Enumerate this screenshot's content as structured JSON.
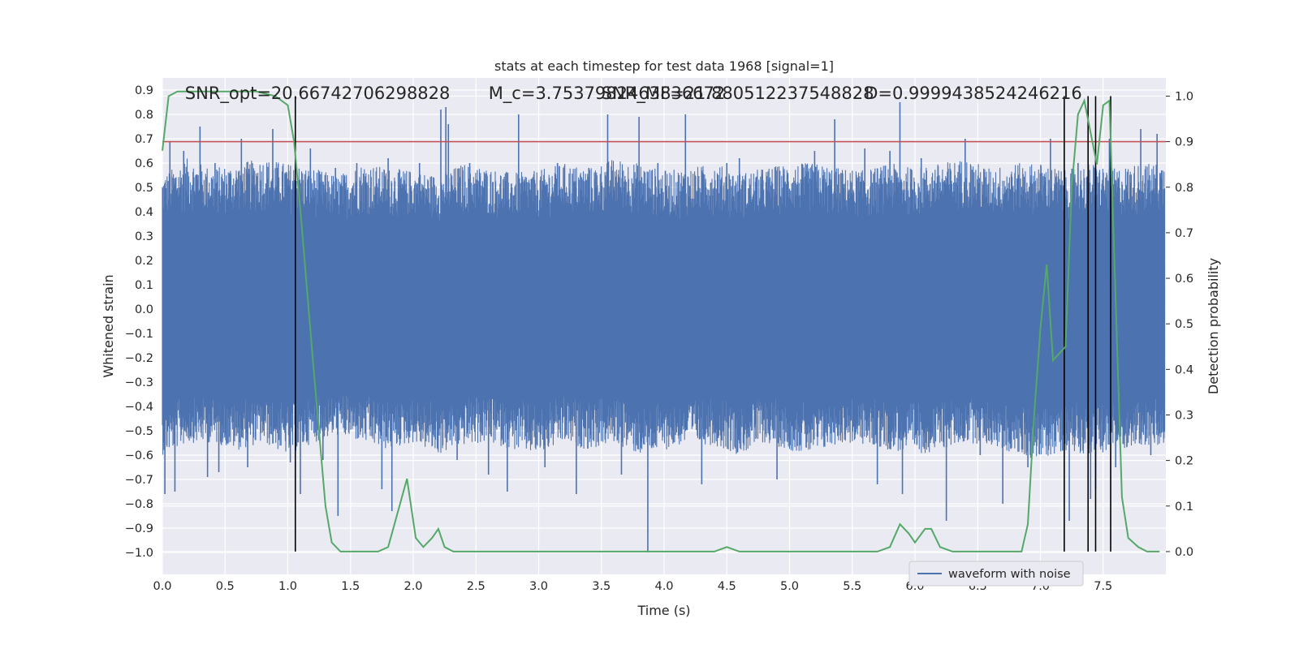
{
  "chart_data": {
    "type": "line",
    "title": "stats at each timestep for test data 1968 [signal=1]",
    "xlabel": "Time (s)",
    "ylabel_left": "Whitened strain",
    "ylabel_right": "Detection probability",
    "xlim": [
      0.0,
      8.0
    ],
    "ylim_left": [
      -1.09,
      0.95
    ],
    "ylim_right": [
      -0.05,
      1.04
    ],
    "x_ticks": [
      "0.0",
      "0.5",
      "1.0",
      "1.5",
      "2.0",
      "2.5",
      "3.0",
      "3.5",
      "4.0",
      "4.5",
      "5.0",
      "5.5",
      "6.0",
      "6.5",
      "7.0",
      "7.5"
    ],
    "y_left_ticks": [
      "0.9",
      "0.8",
      "0.7",
      "0.6",
      "0.5",
      "0.4",
      "0.3",
      "0.2",
      "0.1",
      "0.0",
      "−0.1",
      "−0.2",
      "−0.3",
      "−0.4",
      "−0.5",
      "−0.6",
      "−0.7",
      "−0.8",
      "−0.9",
      "−1.0"
    ],
    "y_right_ticks": [
      "1.0",
      "0.9",
      "0.8",
      "0.7",
      "0.6",
      "0.5",
      "0.4",
      "0.3",
      "0.2",
      "0.1",
      "0.0"
    ],
    "grid": true,
    "legend": {
      "placement": "lower-right",
      "entries": [
        "waveform with noise"
      ]
    },
    "colors": {
      "waveform": "#4c72b0",
      "probability": "#55a868",
      "threshold": "#c44e52",
      "markers": "#000000",
      "background": "#eaeaf2"
    },
    "annotations": [
      {
        "text": "SNR_opt=20.66742706298828",
        "x": 0.18
      },
      {
        "text": "M_c=3.7537982463836672",
        "x": 2.6
      },
      {
        "text": "SNR_MF=21.880512237548828",
        "x": 3.5
      },
      {
        "text": "D=0.9999438524246216",
        "x": 5.6
      }
    ],
    "threshold_probability": 0.9,
    "vertical_lines": [
      1.06,
      7.19,
      7.38,
      7.44,
      7.56
    ],
    "series": [
      {
        "name": "waveform with noise",
        "axis": "left",
        "envelope_upper": [
          0.55,
          0.62,
          0.58,
          0.6,
          0.62,
          0.6,
          0.58,
          0.55,
          0.6,
          0.58,
          0.57,
          0.55,
          0.6,
          0.58,
          0.56,
          0.57,
          0.6,
          0.58,
          0.62,
          0.6,
          0.57,
          0.58,
          0.6,
          0.56,
          0.58,
          0.6,
          0.6,
          0.58,
          0.57,
          0.6,
          0.58,
          0.6,
          0.62,
          0.58,
          0.6,
          0.6,
          0.57,
          0.6,
          0.58,
          0.6,
          0.6
        ],
        "envelope_lower": [
          -0.6,
          -0.55,
          -0.55,
          -0.58,
          -0.55,
          -0.6,
          -0.55,
          -0.52,
          -0.55,
          -0.58,
          -0.55,
          -0.6,
          -0.56,
          -0.55,
          -0.58,
          -0.6,
          -0.55,
          -0.58,
          -0.55,
          -0.6,
          -0.58,
          -0.55,
          -0.56,
          -0.6,
          -0.55,
          -0.58,
          -0.6,
          -0.55,
          -0.56,
          -0.58,
          -0.6,
          -0.58,
          -0.55,
          -0.56,
          -0.6,
          -0.62,
          -0.58,
          -0.6,
          -0.58,
          -0.56,
          -0.58
        ],
        "spikes": [
          [
            0.02,
            -0.76
          ],
          [
            0.06,
            0.69
          ],
          [
            0.1,
            -0.75
          ],
          [
            0.17,
            0.65
          ],
          [
            0.3,
            0.75
          ],
          [
            0.36,
            -0.69
          ],
          [
            0.42,
            0.6
          ],
          [
            0.45,
            -0.67
          ],
          [
            0.63,
            0.7
          ],
          [
            0.68,
            -0.65
          ],
          [
            0.88,
            0.74
          ],
          [
            1.02,
            -0.63
          ],
          [
            1.1,
            -0.76
          ],
          [
            1.18,
            0.66
          ],
          [
            1.28,
            -0.62
          ],
          [
            1.38,
            0.58
          ],
          [
            1.4,
            -0.85
          ],
          [
            1.55,
            0.6
          ],
          [
            1.75,
            -0.74
          ],
          [
            1.8,
            0.62
          ],
          [
            1.83,
            -0.83
          ],
          [
            2.05,
            0.6
          ],
          [
            2.22,
            0.82
          ],
          [
            2.26,
            0.83
          ],
          [
            2.28,
            0.76
          ],
          [
            2.35,
            -0.62
          ],
          [
            2.45,
            0.6
          ],
          [
            2.6,
            -0.68
          ],
          [
            2.75,
            -0.75
          ],
          [
            2.84,
            0.8
          ],
          [
            3.05,
            -0.65
          ],
          [
            3.15,
            0.6
          ],
          [
            3.3,
            -0.76
          ],
          [
            3.4,
            0.58
          ],
          [
            3.55,
            0.8
          ],
          [
            3.66,
            -0.68
          ],
          [
            3.8,
            0.79
          ],
          [
            3.87,
            -1.0
          ],
          [
            3.95,
            0.6
          ],
          [
            4.17,
            0.8
          ],
          [
            4.3,
            -0.72
          ],
          [
            4.5,
            0.6
          ],
          [
            4.6,
            0.62
          ],
          [
            4.9,
            -0.7
          ],
          [
            5.2,
            0.65
          ],
          [
            5.36,
            0.78
          ],
          [
            5.6,
            0.66
          ],
          [
            5.7,
            -0.72
          ],
          [
            5.8,
            0.65
          ],
          [
            5.88,
            0.85
          ],
          [
            5.9,
            -0.76
          ],
          [
            6.05,
            0.62
          ],
          [
            6.25,
            -0.87
          ],
          [
            6.4,
            0.7
          ],
          [
            6.52,
            -0.6
          ],
          [
            6.7,
            -0.8
          ],
          [
            6.9,
            -0.65
          ],
          [
            7.08,
            0.7
          ],
          [
            7.23,
            -0.87
          ],
          [
            7.3,
            0.6
          ],
          [
            7.4,
            -0.78
          ],
          [
            7.44,
            -0.74
          ],
          [
            7.55,
            0.7
          ],
          [
            7.6,
            -0.65
          ],
          [
            7.8,
            0.74
          ],
          [
            7.88,
            -0.6
          ],
          [
            7.93,
            0.72
          ]
        ]
      },
      {
        "name": "",
        "axis": "right",
        "x": [
          0.0,
          0.05,
          0.12,
          0.25,
          0.5,
          0.75,
          0.9,
          1.0,
          1.05,
          1.1,
          1.2,
          1.3,
          1.35,
          1.42,
          1.55,
          1.72,
          1.8,
          1.86,
          1.95,
          2.02,
          2.08,
          2.15,
          2.2,
          2.25,
          2.32,
          2.45,
          2.6,
          2.8,
          2.95,
          3.2,
          3.6,
          3.8,
          3.85,
          3.88,
          4.0,
          4.4,
          4.5,
          4.6,
          4.7,
          4.9,
          5.3,
          5.5,
          5.7,
          5.8,
          5.88,
          5.95,
          6.0,
          6.08,
          6.13,
          6.2,
          6.3,
          6.5,
          6.7,
          6.85,
          6.9,
          6.95,
          7.0,
          7.05,
          7.1,
          7.2,
          7.25,
          7.3,
          7.35,
          7.4,
          7.45,
          7.5,
          7.55,
          7.6,
          7.65,
          7.7,
          7.78,
          7.85,
          7.92,
          7.95
        ],
        "y": [
          0.88,
          1.0,
          1.01,
          1.01,
          1.01,
          1.01,
          1.0,
          0.98,
          0.9,
          0.75,
          0.42,
          0.1,
          0.02,
          0.0,
          0.0,
          0.0,
          0.01,
          0.07,
          0.16,
          0.03,
          0.01,
          0.03,
          0.05,
          0.01,
          0.0,
          0.0,
          0.0,
          0.0,
          0.0,
          0.0,
          0.0,
          0.0,
          0.0,
          0.0,
          0.0,
          0.0,
          0.01,
          0.0,
          0.0,
          0.0,
          0.0,
          0.0,
          0.0,
          0.01,
          0.06,
          0.04,
          0.02,
          0.05,
          0.05,
          0.01,
          0.0,
          0.0,
          0.0,
          0.0,
          0.06,
          0.3,
          0.49,
          0.63,
          0.42,
          0.45,
          0.8,
          0.96,
          0.99,
          0.92,
          0.85,
          0.98,
          0.99,
          0.55,
          0.12,
          0.03,
          0.01,
          0.0,
          0.0,
          0.0
        ]
      }
    ]
  }
}
